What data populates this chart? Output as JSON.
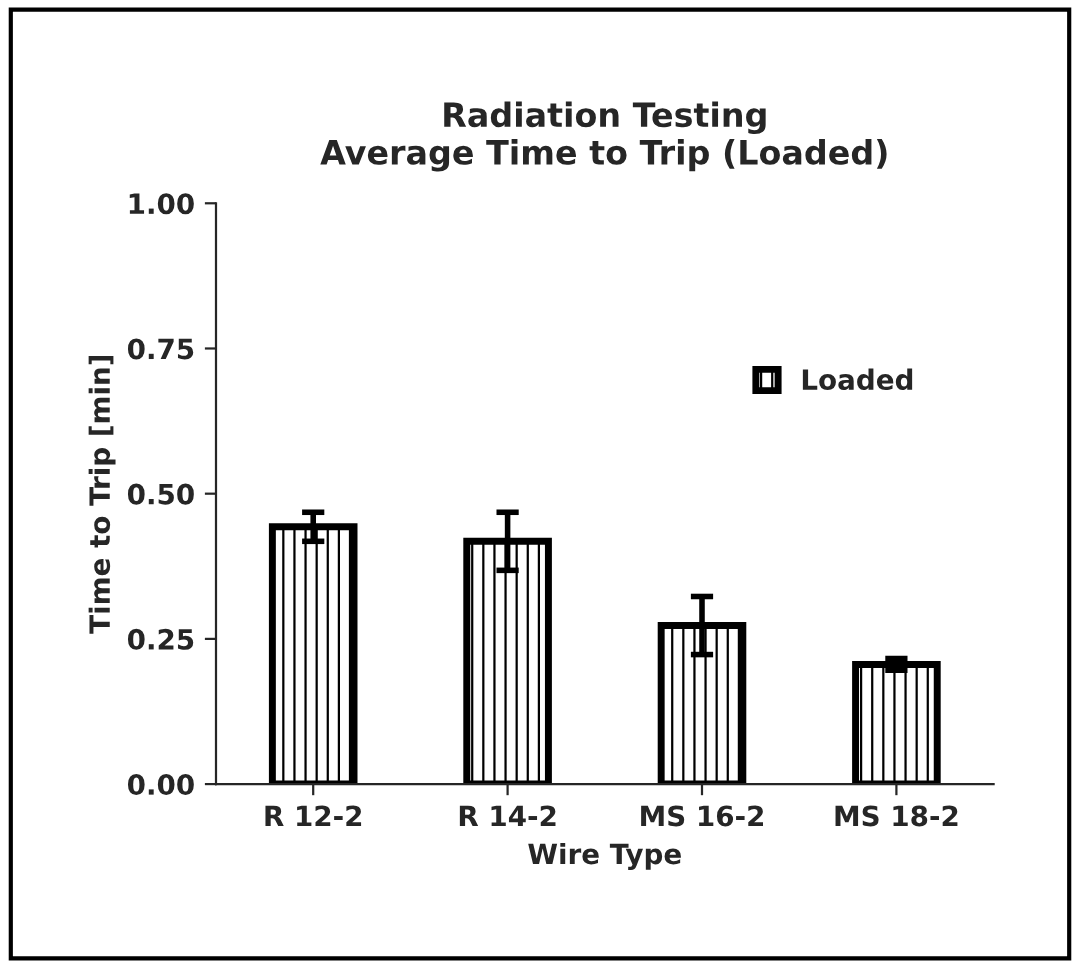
{
  "chart_data": {
    "type": "bar",
    "title": "Radiation Testing\nAverage Time to Trip (Loaded)",
    "xlabel": "Wire Type",
    "ylabel": "Time to Trip [min]",
    "categories": [
      "R 12-2",
      "R 14-2",
      "MS 16-2",
      "MS 18-2"
    ],
    "series": [
      {
        "name": "Loaded",
        "color": "#000000",
        "values": [
          0.443,
          0.418,
          0.273,
          0.206
        ],
        "errors": [
          0.025,
          0.05,
          0.05,
          0.01
        ]
      }
    ],
    "ylim": [
      0,
      1
    ],
    "yticks": [
      {
        "value": 0,
        "label": "0.00"
      },
      {
        "value": 0.25,
        "label": "0.25"
      },
      {
        "value": 0.5,
        "label": "0.50"
      },
      {
        "value": 0.75,
        "label": "0.75"
      },
      {
        "value": 1,
        "label": "1.00"
      }
    ],
    "grid": false,
    "legend": "top right"
  }
}
